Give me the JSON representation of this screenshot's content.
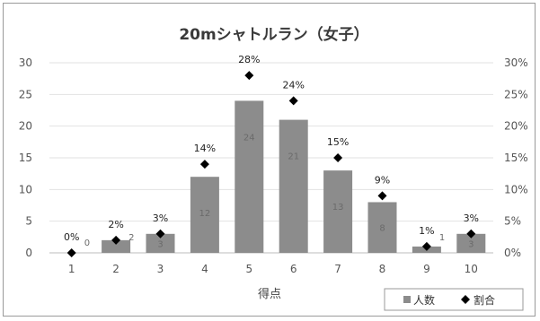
{
  "chart_data": {
    "type": "bar",
    "title": "20mシャトルラン（女子）",
    "xlabel": "得点",
    "ylabel": "",
    "categories": [
      "1",
      "2",
      "3",
      "4",
      "5",
      "6",
      "7",
      "8",
      "9",
      "10"
    ],
    "series": [
      {
        "name": "人数",
        "type": "bar",
        "axis": "left",
        "color": "#8c8c8c",
        "values": [
          0,
          2,
          3,
          12,
          24,
          21,
          13,
          8,
          1,
          3
        ]
      },
      {
        "name": "割合",
        "type": "scatter",
        "axis": "right",
        "marker": "diamond",
        "color": "#000000",
        "values": [
          0,
          2,
          3,
          14,
          28,
          24,
          15,
          9,
          1,
          3
        ],
        "labels": [
          "0%",
          "2%",
          "3%",
          "14%",
          "28%",
          "24%",
          "15%",
          "9%",
          "1%",
          "3%"
        ]
      }
    ],
    "bar_value_labels": [
      "0",
      "2",
      "3",
      "12",
      "24",
      "21",
      "13",
      "8",
      "1",
      "3"
    ],
    "ylim": [
      0,
      30
    ],
    "yticks": [
      "0",
      "5",
      "10",
      "15",
      "20",
      "25",
      "30"
    ],
    "y2lim": [
      0,
      30
    ],
    "y2ticks": [
      "0%",
      "5%",
      "10%",
      "15%",
      "20%",
      "25%",
      "30%"
    ],
    "grid": true,
    "legend_position": "bottom-right"
  }
}
